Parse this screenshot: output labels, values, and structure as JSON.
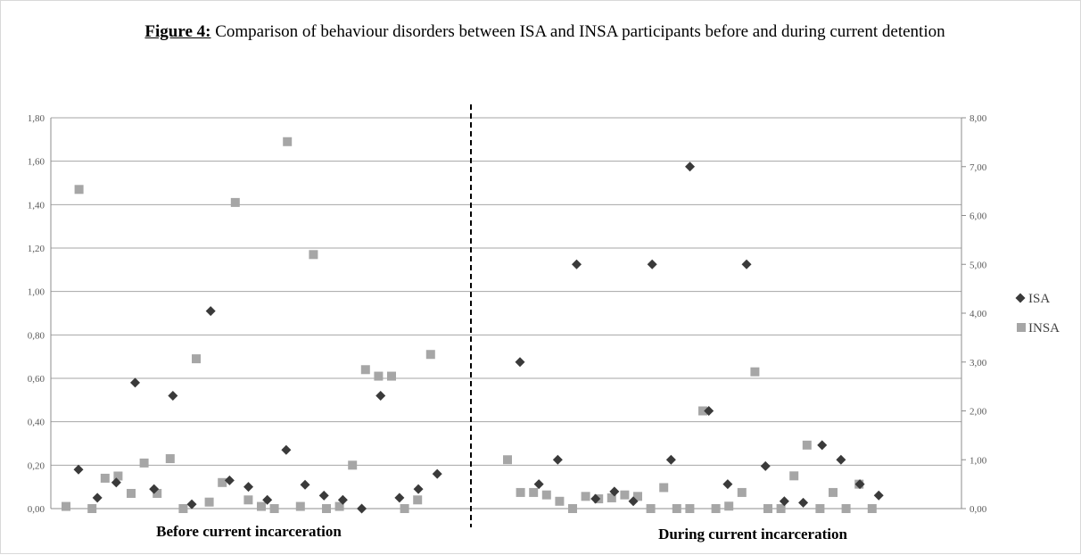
{
  "figure": {
    "title_lead": "Figure 4:",
    "title_text": "Comparison of behaviour disorders between ISA and INSA participants before and during current detention"
  },
  "chart_data": {
    "type": "scatter",
    "panels": [
      {
        "name": "Before current incarceration",
        "axis": "left",
        "ylim": [
          0,
          1.8
        ],
        "yticks": [
          "0,00",
          "0,20",
          "0,40",
          "0,60",
          "0,80",
          "1,00",
          "1,20",
          "1,40",
          "1,60",
          "1,80"
        ],
        "series": [
          {
            "name": "ISA",
            "values": [
              0.18,
              0.05,
              0.12,
              0.58,
              0.09,
              0.52,
              0.02,
              0.91,
              0.13,
              0.1,
              0.04,
              0.27,
              0.11,
              0.06,
              0.04,
              0.0,
              0.52,
              0.05,
              0.09,
              0.16
            ]
          },
          {
            "name": "INSA",
            "values": [
              0.01,
              1.47,
              0.0,
              0.14,
              0.15,
              0.07,
              0.21,
              0.07,
              0.23,
              0.0,
              0.69,
              0.03,
              0.12,
              1.41,
              0.04,
              0.01,
              0.0,
              1.69,
              0.01,
              1.17,
              0.0,
              0.01,
              0.2,
              0.64,
              0.61,
              0.61,
              0.0,
              0.04,
              0.71
            ]
          }
        ]
      },
      {
        "name": "During current incarceration",
        "axis": "right",
        "ylim": [
          0,
          8
        ],
        "yticks": [
          "0,00",
          "1,00",
          "2,00",
          "3,00",
          "4,00",
          "5,00",
          "6,00",
          "7,00",
          "8,00"
        ],
        "series": [
          {
            "name": "ISA",
            "values": [
              3.0,
              0.5,
              1.0,
              5.0,
              0.2,
              0.35,
              0.15,
              5.0,
              1.0,
              7.0,
              2.0,
              0.5,
              5.0,
              0.87,
              0.15,
              0.12,
              1.3,
              1.0,
              0.5,
              0.27
            ]
          },
          {
            "name": "INSA",
            "values": [
              1.0,
              0.33,
              0.33,
              0.28,
              0.15,
              0.0,
              0.25,
              0.2,
              0.22,
              0.28,
              0.25,
              0.0,
              0.43,
              0.0,
              0.0,
              2.0,
              0.0,
              0.05,
              0.33,
              2.8,
              0.0,
              0.0,
              0.67,
              1.3,
              0.0,
              0.33,
              0.0,
              0.5,
              0.0
            ]
          }
        ]
      }
    ],
    "legend": [
      {
        "name": "ISA",
        "marker": "diamond",
        "color": "#3a3a3a"
      },
      {
        "name": "INSA",
        "marker": "square",
        "color": "#a6a6a6"
      }
    ],
    "legend_position": "right",
    "divider": "dashed vertical line between panels",
    "grid": true,
    "colors": {
      "isa": "#3a3a3a",
      "insa": "#a6a6a6",
      "grid": "#a6a6a6",
      "axis": "#8c8c8c",
      "divider": "#000000"
    }
  }
}
